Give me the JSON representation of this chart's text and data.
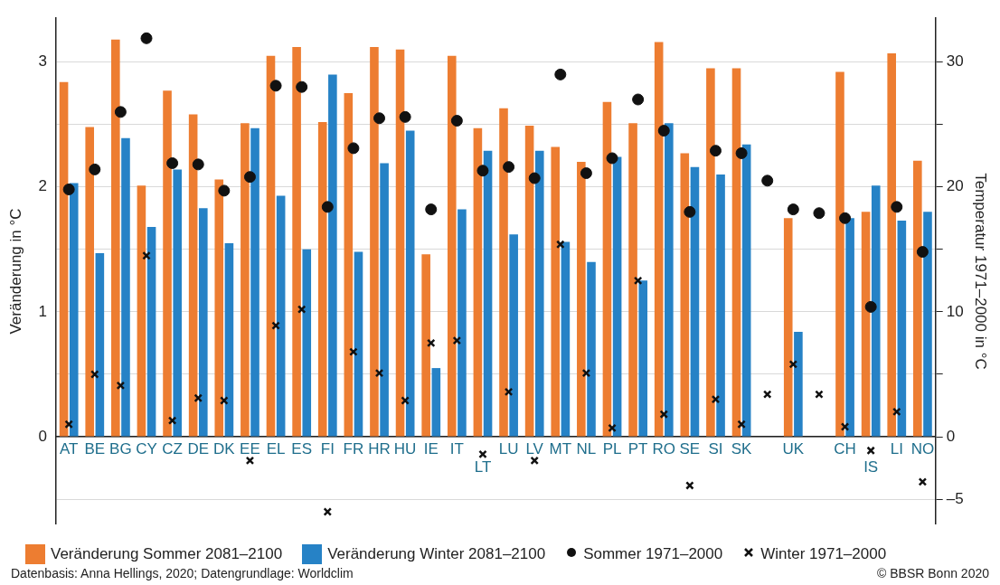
{
  "chart_data": {
    "type": "bar",
    "categories": [
      "AT",
      "BE",
      "BG",
      "CY",
      "CZ",
      "DE",
      "DK",
      "EE",
      "EL",
      "ES",
      "FI",
      "FR",
      "HR",
      "HU",
      "IE",
      "IT",
      "LT",
      "LU",
      "LV",
      "MT",
      "NL",
      "PL",
      "PT",
      "RO",
      "SE",
      "SI",
      "SK",
      null,
      "UK",
      null,
      "CH",
      "IS",
      "LI",
      "NO"
    ],
    "series": [
      {
        "name": "Veränderung Sommer 2081–2100",
        "color": "#ed7d31",
        "values": [
          2.84,
          2.48,
          3.18,
          2.01,
          2.77,
          2.58,
          2.06,
          2.51,
          3.05,
          3.12,
          2.52,
          2.75,
          3.12,
          3.1,
          1.46,
          3.05,
          2.47,
          2.63,
          2.49,
          2.32,
          2.2,
          2.68,
          2.51,
          3.16,
          2.27,
          2.95,
          2.95,
          null,
          1.75,
          null,
          2.92,
          1.8,
          3.07,
          2.21
        ]
      },
      {
        "name": "Veränderung Winter 2081–2100",
        "color": "#2682c6",
        "values": [
          2.03,
          1.47,
          2.39,
          1.68,
          2.14,
          1.83,
          1.55,
          2.47,
          1.93,
          1.5,
          2.9,
          1.48,
          2.19,
          2.45,
          0.55,
          1.82,
          2.29,
          1.62,
          2.29,
          1.56,
          1.4,
          2.24,
          1.25,
          2.51,
          2.16,
          2.1,
          2.34,
          null,
          0.84,
          null,
          1.75,
          2.01,
          1.73,
          1.8
        ]
      },
      {
        "name": "Sommer 1971–2000",
        "type": "scatter",
        "axis": "y2",
        "marker": "circle",
        "color": "#111111",
        "values": [
          19.8,
          21.4,
          26.0,
          31.9,
          21.9,
          21.8,
          19.7,
          20.8,
          28.1,
          28.0,
          18.4,
          23.1,
          25.5,
          25.6,
          18.2,
          25.3,
          21.3,
          21.6,
          20.7,
          29.0,
          21.1,
          22.3,
          27.0,
          24.5,
          18.0,
          22.9,
          22.7,
          20.5,
          18.2,
          17.9,
          17.5,
          10.4,
          18.4,
          14.8
        ]
      },
      {
        "name": "Winter 1971–2000",
        "type": "scatter",
        "axis": "y2",
        "marker": "cross",
        "color": "#111111",
        "values": [
          1.0,
          5.0,
          4.1,
          14.5,
          1.3,
          3.1,
          2.9,
          -1.9,
          8.9,
          10.2,
          -6.0,
          6.8,
          5.1,
          2.9,
          7.5,
          7.7,
          -1.4,
          3.6,
          -1.9,
          15.4,
          5.1,
          0.7,
          12.5,
          1.8,
          -3.9,
          3.0,
          1.0,
          3.4,
          5.8,
          3.4,
          0.8,
          -1.1,
          2.0,
          -3.6
        ]
      }
    ],
    "ylabel": "Veränderung in °C",
    "y2label": "Temperatur 1971–2000 in °C",
    "ylim": [
      -0.7,
      3.35
    ],
    "yticks": [
      {
        "value": -0.5,
        "label": null
      },
      0,
      {
        "value": 0.5,
        "label": null
      },
      1,
      {
        "value": 1.5,
        "label": null
      },
      2,
      {
        "value": 2.5,
        "label": null
      },
      3
    ],
    "y2lim": [
      -7,
      33.5
    ],
    "y2ticks": [
      {
        "value": -5,
        "label": "–5"
      },
      0,
      {
        "value": 5,
        "label": null
      },
      10,
      {
        "value": 15,
        "label": null
      },
      20,
      {
        "value": 25,
        "label": null
      },
      30
    ],
    "grid": "y",
    "legend": "bottom",
    "annotations": [
      "Datenbasis: Anna Hellings, 2020; Datengrundlage: Worldclim",
      "© BBSR Bonn 2020"
    ]
  }
}
